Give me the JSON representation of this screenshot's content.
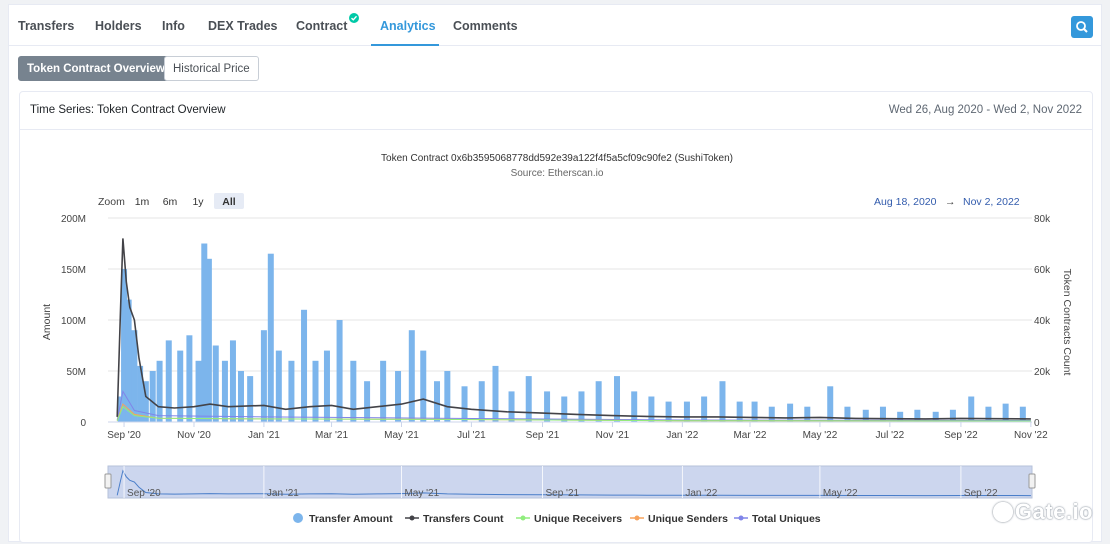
{
  "tabs": [
    {
      "label": "Transfers",
      "active": false
    },
    {
      "label": "Holders",
      "active": false
    },
    {
      "label": "Info",
      "active": false
    },
    {
      "label": "DEX Trades",
      "active": false
    },
    {
      "label": "Contract",
      "active": false,
      "verified": true
    },
    {
      "label": "Analytics",
      "active": true
    },
    {
      "label": "Comments",
      "active": false
    }
  ],
  "buttons": {
    "overview": "Token Contract Overview",
    "historical": "Historical Price"
  },
  "card": {
    "title": "Time Series: Token Contract Overview",
    "range": "Wed 26, Aug 2020 - Wed 2, Nov 2022"
  },
  "watermark": "Gate.io",
  "colors": {
    "accent": "#3498db",
    "transfer_amount": "#7cb5ec",
    "transfers_count": "#434348",
    "unique_receivers": "#90ed7d",
    "unique_senders": "#f7a35c",
    "total_uniques": "#8085e9"
  },
  "chart_data": {
    "type": "bar",
    "title": "Token Contract 0x6b3595068778dd592e39a122f4f5a5cf09c90fe2 (SushiToken)",
    "subtitle": "Source: Etherscan.io",
    "zoom": {
      "label": "Zoom",
      "options": [
        "1m",
        "6m",
        "1y",
        "All"
      ],
      "selected": "All"
    },
    "range_selector": {
      "from": "Aug 18, 2020",
      "arrow": "→",
      "to": "Nov 2, 2022"
    },
    "ylabel_left": "Amount",
    "ylabel_right": "Token Contracts Count",
    "left_axis_ticks": [
      "0",
      "50M",
      "100M",
      "150M",
      "200M"
    ],
    "right_axis_ticks": [
      "0",
      "20k",
      "40k",
      "60k",
      "80k"
    ],
    "ylim_left": [
      0,
      200000000
    ],
    "ylim_right": [
      0,
      80000
    ],
    "x_ticks": [
      "Sep '20",
      "Nov '20",
      "Jan '21",
      "Mar '21",
      "May '21",
      "Jul '21",
      "Sep '21",
      "Nov '21",
      "Jan '22",
      "Mar '22",
      "May '22",
      "Jul '22",
      "Sep '22",
      "Nov '22"
    ],
    "x_tick_dates": [
      "2020-09-01",
      "2020-11-01",
      "2021-01-01",
      "2021-03-01",
      "2021-05-01",
      "2021-07-01",
      "2021-09-01",
      "2021-11-01",
      "2022-01-01",
      "2022-03-01",
      "2022-05-01",
      "2022-07-01",
      "2022-09-01",
      "2022-11-01"
    ],
    "navigator_ticks": [
      "Sep '20",
      "Jan '21",
      "May '21",
      "Sep '21",
      "Jan '22",
      "May '22",
      "Sep '22"
    ],
    "navigator_tick_dates": [
      "2020-09-01",
      "2021-01-01",
      "2021-05-01",
      "2021-09-01",
      "2022-01-01",
      "2022-05-01",
      "2022-09-01"
    ],
    "x_range": [
      "2020-08-18",
      "2022-11-02"
    ],
    "legend": [
      "Transfer Amount",
      "Transfers Count",
      "Unique Receivers",
      "Unique Senders",
      "Total Uniques"
    ],
    "legend_position": "bottom",
    "series": [
      {
        "name": "Transfer Amount",
        "type": "column",
        "axis": "left",
        "points": [
          [
            "2020-08-29",
            25000000
          ],
          [
            "2020-09-01",
            150000000
          ],
          [
            "2020-09-05",
            120000000
          ],
          [
            "2020-09-10",
            90000000
          ],
          [
            "2020-09-15",
            55000000
          ],
          [
            "2020-09-20",
            40000000
          ],
          [
            "2020-09-26",
            50000000
          ],
          [
            "2020-10-02",
            60000000
          ],
          [
            "2020-10-10",
            80000000
          ],
          [
            "2020-10-20",
            70000000
          ],
          [
            "2020-10-28",
            85000000
          ],
          [
            "2020-11-05",
            60000000
          ],
          [
            "2020-11-10",
            175000000
          ],
          [
            "2020-11-14",
            160000000
          ],
          [
            "2020-11-20",
            75000000
          ],
          [
            "2020-11-28",
            60000000
          ],
          [
            "2020-12-05",
            80000000
          ],
          [
            "2020-12-12",
            50000000
          ],
          [
            "2020-12-20",
            45000000
          ],
          [
            "2021-01-01",
            90000000
          ],
          [
            "2021-01-07",
            165000000
          ],
          [
            "2021-01-14",
            70000000
          ],
          [
            "2021-01-25",
            60000000
          ],
          [
            "2021-02-05",
            110000000
          ],
          [
            "2021-02-15",
            60000000
          ],
          [
            "2021-02-25",
            70000000
          ],
          [
            "2021-03-08",
            100000000
          ],
          [
            "2021-03-20",
            60000000
          ],
          [
            "2021-04-01",
            40000000
          ],
          [
            "2021-04-15",
            60000000
          ],
          [
            "2021-04-28",
            50000000
          ],
          [
            "2021-05-10",
            90000000
          ],
          [
            "2021-05-20",
            70000000
          ],
          [
            "2021-06-01",
            40000000
          ],
          [
            "2021-06-10",
            50000000
          ],
          [
            "2021-06-25",
            35000000
          ],
          [
            "2021-07-10",
            40000000
          ],
          [
            "2021-07-22",
            55000000
          ],
          [
            "2021-08-05",
            30000000
          ],
          [
            "2021-08-20",
            45000000
          ],
          [
            "2021-09-05",
            30000000
          ],
          [
            "2021-09-20",
            25000000
          ],
          [
            "2021-10-05",
            30000000
          ],
          [
            "2021-10-20",
            40000000
          ],
          [
            "2021-11-05",
            45000000
          ],
          [
            "2021-11-20",
            30000000
          ],
          [
            "2021-12-05",
            25000000
          ],
          [
            "2021-12-20",
            20000000
          ],
          [
            "2022-01-05",
            20000000
          ],
          [
            "2022-01-20",
            25000000
          ],
          [
            "2022-02-05",
            40000000
          ],
          [
            "2022-02-20",
            20000000
          ],
          [
            "2022-03-05",
            20000000
          ],
          [
            "2022-03-20",
            15000000
          ],
          [
            "2022-04-05",
            18000000
          ],
          [
            "2022-04-20",
            15000000
          ],
          [
            "2022-05-10",
            35000000
          ],
          [
            "2022-05-25",
            15000000
          ],
          [
            "2022-06-10",
            12000000
          ],
          [
            "2022-06-25",
            15000000
          ],
          [
            "2022-07-10",
            10000000
          ],
          [
            "2022-07-25",
            12000000
          ],
          [
            "2022-08-10",
            10000000
          ],
          [
            "2022-08-25",
            12000000
          ],
          [
            "2022-09-10",
            25000000
          ],
          [
            "2022-09-25",
            15000000
          ],
          [
            "2022-10-10",
            18000000
          ],
          [
            "2022-10-25",
            15000000
          ]
        ]
      },
      {
        "name": "Transfers Count",
        "type": "line",
        "axis": "right",
        "points": [
          [
            "2020-08-26",
            2000
          ],
          [
            "2020-08-29",
            45000
          ],
          [
            "2020-08-31",
            72000
          ],
          [
            "2020-09-03",
            55000
          ],
          [
            "2020-09-06",
            45000
          ],
          [
            "2020-09-10",
            40000
          ],
          [
            "2020-09-14",
            25000
          ],
          [
            "2020-09-20",
            10000
          ],
          [
            "2020-10-01",
            6000
          ],
          [
            "2020-10-15",
            5500
          ],
          [
            "2020-11-01",
            6000
          ],
          [
            "2020-11-15",
            7000
          ],
          [
            "2020-12-01",
            6000
          ],
          [
            "2021-01-01",
            6500
          ],
          [
            "2021-01-20",
            5000
          ],
          [
            "2021-02-10",
            6000
          ],
          [
            "2021-03-01",
            6500
          ],
          [
            "2021-03-20",
            5000
          ],
          [
            "2021-04-10",
            6000
          ],
          [
            "2021-05-01",
            7000
          ],
          [
            "2021-05-20",
            9000
          ],
          [
            "2021-06-10",
            6000
          ],
          [
            "2021-07-01",
            5000
          ],
          [
            "2021-08-01",
            4000
          ],
          [
            "2021-09-01",
            3500
          ],
          [
            "2021-10-01",
            3000
          ],
          [
            "2021-11-01",
            2500
          ],
          [
            "2021-12-01",
            2200
          ],
          [
            "2022-01-01",
            2000
          ],
          [
            "2022-02-01",
            2000
          ],
          [
            "2022-03-01",
            1800
          ],
          [
            "2022-04-01",
            1600
          ],
          [
            "2022-05-01",
            1800
          ],
          [
            "2022-06-01",
            1400
          ],
          [
            "2022-07-01",
            1300
          ],
          [
            "2022-08-01",
            1200
          ],
          [
            "2022-09-01",
            1400
          ],
          [
            "2022-10-01",
            1300
          ],
          [
            "2022-11-01",
            1200
          ]
        ]
      },
      {
        "name": "Unique Receivers",
        "type": "line",
        "axis": "right",
        "points": [
          [
            "2020-08-26",
            500
          ],
          [
            "2020-08-31",
            6000
          ],
          [
            "2020-09-10",
            2500
          ],
          [
            "2020-10-01",
            1500
          ],
          [
            "2021-01-01",
            1200
          ],
          [
            "2021-06-01",
            1000
          ],
          [
            "2022-01-01",
            500
          ],
          [
            "2022-11-01",
            400
          ]
        ]
      },
      {
        "name": "Unique Senders",
        "type": "line",
        "axis": "right",
        "points": [
          [
            "2020-08-26",
            500
          ],
          [
            "2020-08-31",
            7000
          ],
          [
            "2020-09-10",
            3000
          ],
          [
            "2020-10-01",
            1500
          ],
          [
            "2021-01-01",
            1200
          ],
          [
            "2021-06-01",
            1000
          ],
          [
            "2022-01-01",
            500
          ],
          [
            "2022-11-01",
            400
          ]
        ]
      },
      {
        "name": "Total Uniques",
        "type": "line",
        "axis": "right",
        "points": [
          [
            "2020-08-26",
            800
          ],
          [
            "2020-08-31",
            12000
          ],
          [
            "2020-09-10",
            4500
          ],
          [
            "2020-10-01",
            2500
          ],
          [
            "2021-01-01",
            2000
          ],
          [
            "2021-06-01",
            1500
          ],
          [
            "2022-01-01",
            800
          ],
          [
            "2022-11-01",
            600
          ]
        ]
      }
    ]
  }
}
